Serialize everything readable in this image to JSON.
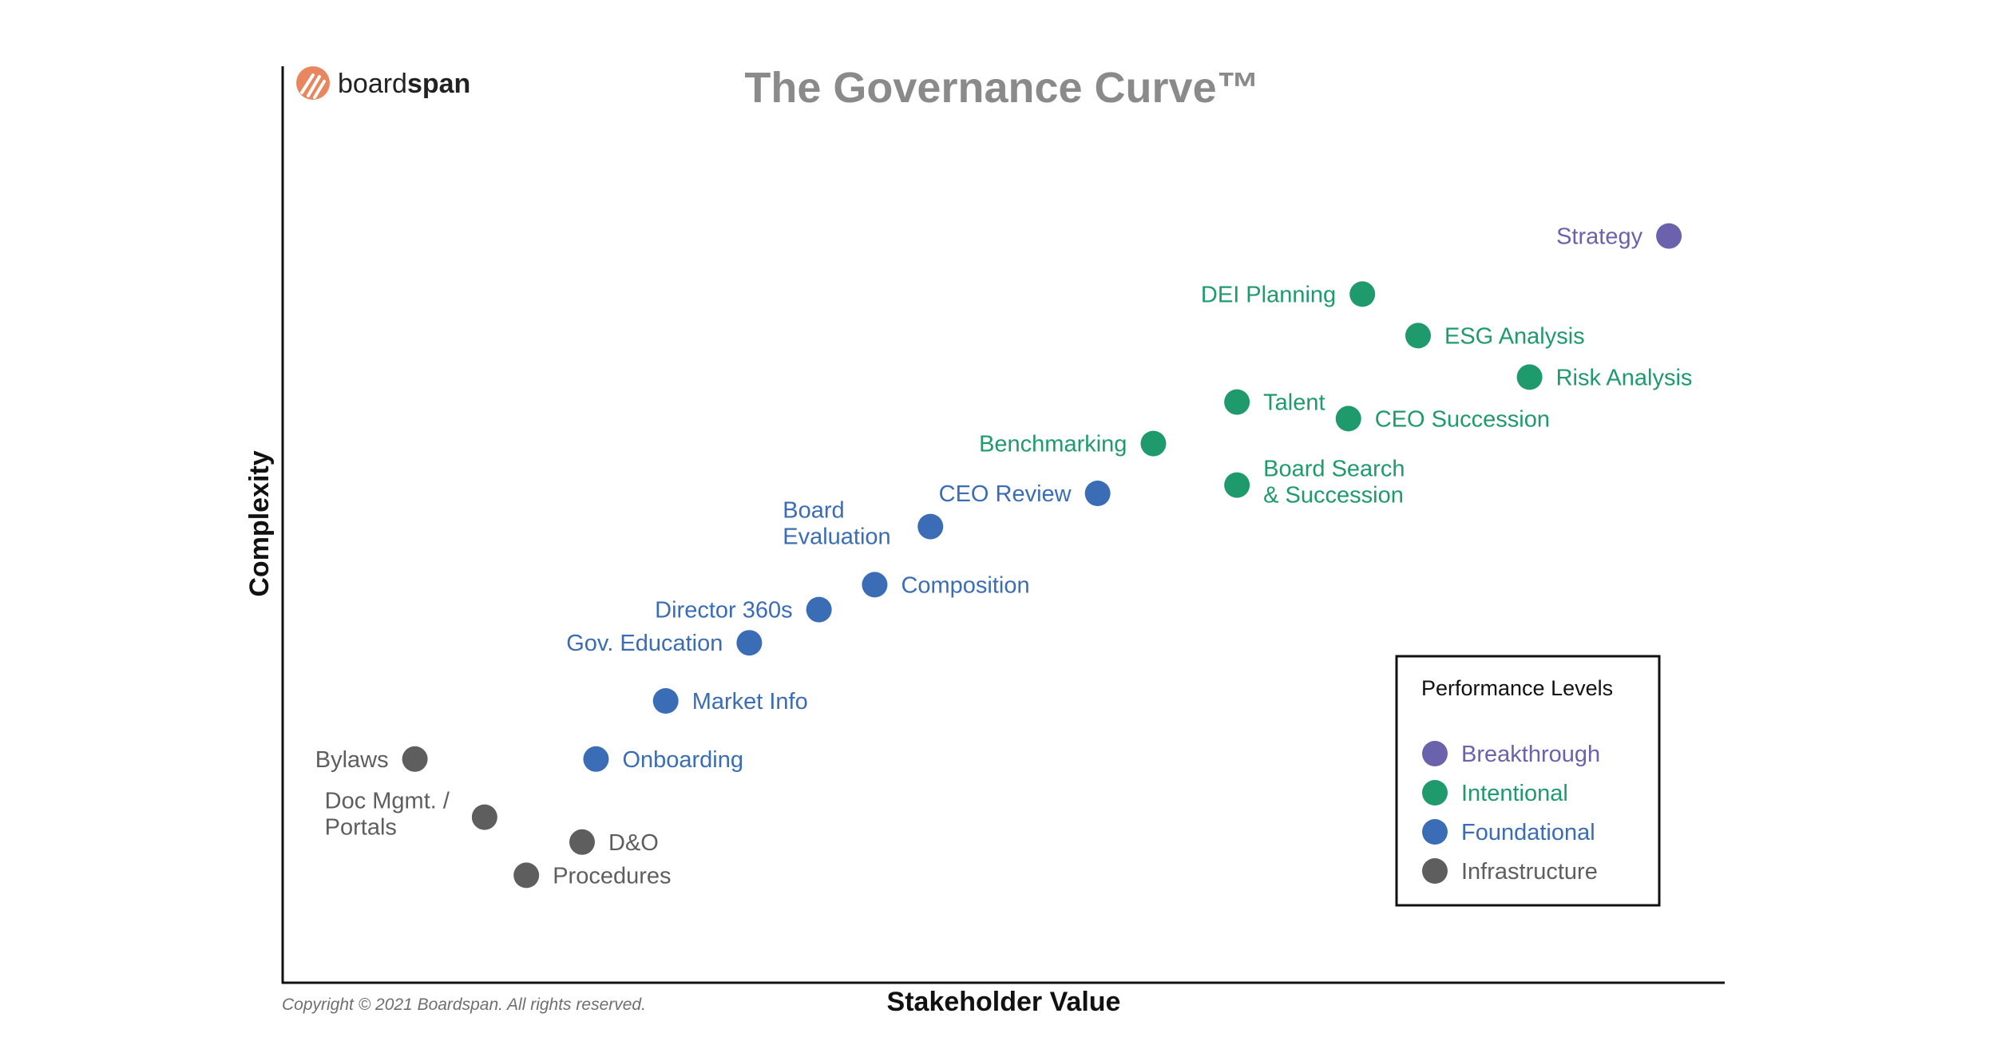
{
  "logo": {
    "text_regular": "board",
    "text_bold": "span",
    "mark_color": "#E8875F"
  },
  "title": "The Governance Curve™",
  "copyright": "Copyright © 2021 Boardspan. All rights reserved.",
  "colors": {
    "Breakthrough": "#6B62AE",
    "Intentional": "#1F9A6C",
    "Foundational": "#3A6DB5",
    "Infrastructure": "#5E5E5E",
    "title": "#8A8A8A",
    "axis": "#111111"
  },
  "chart_data": {
    "type": "scatter",
    "title": "The Governance Curve™",
    "xlabel": "Stakeholder Value",
    "ylabel": "Complexity",
    "xlim": [
      0,
      100
    ],
    "ylim": [
      0,
      100
    ],
    "grid": false,
    "legend_position": "bottom-right",
    "legend_title": "Performance Levels",
    "series": [
      {
        "name": "Breakthrough",
        "points": [
          {
            "label": "Strategy",
            "x": 98,
            "y": 86
          }
        ]
      },
      {
        "name": "Intentional",
        "points": [
          {
            "label": "DEI Planning",
            "x": 76,
            "y": 79
          },
          {
            "label": "ESG Analysis",
            "x": 80,
            "y": 74
          },
          {
            "label": "Risk Analysis",
            "x": 88,
            "y": 69
          },
          {
            "label": "Talent",
            "x": 67,
            "y": 66
          },
          {
            "label": "CEO Succession",
            "x": 75,
            "y": 64
          },
          {
            "label": "Benchmarking",
            "x": 61,
            "y": 61
          },
          {
            "label": "Board Search & Succession",
            "x": 67,
            "y": 56
          }
        ]
      },
      {
        "name": "Foundational",
        "points": [
          {
            "label": "CEO Review",
            "x": 57,
            "y": 55
          },
          {
            "label": "Board Evaluation",
            "x": 45,
            "y": 51
          },
          {
            "label": "Composition",
            "x": 41,
            "y": 44
          },
          {
            "label": "Director 360s",
            "x": 37,
            "y": 41
          },
          {
            "label": "Gov. Education",
            "x": 32,
            "y": 37
          },
          {
            "label": "Market Info",
            "x": 26,
            "y": 30
          },
          {
            "label": "Onboarding",
            "x": 21,
            "y": 23
          }
        ]
      },
      {
        "name": "Infrastructure",
        "points": [
          {
            "label": "Bylaws",
            "x": 8,
            "y": 23
          },
          {
            "label": "Doc Mgmt. / Portals",
            "x": 13,
            "y": 16
          },
          {
            "label": "D&O",
            "x": 20,
            "y": 13
          },
          {
            "label": "Procedures",
            "x": 16,
            "y": 9
          }
        ]
      }
    ]
  }
}
